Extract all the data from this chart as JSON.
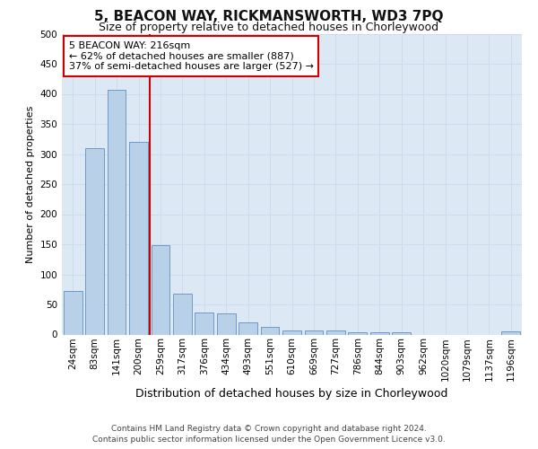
{
  "title": "5, BEACON WAY, RICKMANSWORTH, WD3 7PQ",
  "subtitle": "Size of property relative to detached houses in Chorleywood",
  "xlabel": "Distribution of detached houses by size in Chorleywood",
  "ylabel": "Number of detached properties",
  "footer_line1": "Contains HM Land Registry data © Crown copyright and database right 2024.",
  "footer_line2": "Contains public sector information licensed under the Open Government Licence v3.0.",
  "bar_labels": [
    "24sqm",
    "83sqm",
    "141sqm",
    "200sqm",
    "259sqm",
    "317sqm",
    "376sqm",
    "434sqm",
    "493sqm",
    "551sqm",
    "610sqm",
    "669sqm",
    "727sqm",
    "786sqm",
    "844sqm",
    "903sqm",
    "962sqm",
    "1020sqm",
    "1079sqm",
    "1137sqm",
    "1196sqm"
  ],
  "bar_values": [
    72,
    310,
    407,
    320,
    148,
    68,
    36,
    35,
    20,
    13,
    6,
    6,
    6,
    3,
    3,
    3,
    0,
    0,
    0,
    0,
    5
  ],
  "bar_color": "#b8d0e8",
  "bar_edge_color": "#6090c0",
  "property_label": "5 BEACON WAY: 216sqm",
  "annotation_line1": "← 62% of detached houses are smaller (887)",
  "annotation_line2": "37% of semi-detached houses are larger (527) →",
  "vline_color": "#cc0000",
  "vline_x": 3.5,
  "annotation_box_facecolor": "#ffffff",
  "annotation_box_edgecolor": "#cc0000",
  "ylim": [
    0,
    500
  ],
  "yticks": [
    0,
    50,
    100,
    150,
    200,
    250,
    300,
    350,
    400,
    450,
    500
  ],
  "grid_color": "#ccdcec",
  "background_color": "#dce8f4",
  "title_fontsize": 11,
  "subtitle_fontsize": 9,
  "ylabel_fontsize": 8,
  "xlabel_fontsize": 9,
  "tick_fontsize": 7.5,
  "annotation_fontsize": 8,
  "footer_fontsize": 6.5
}
